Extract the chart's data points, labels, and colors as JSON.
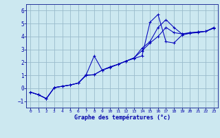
{
  "xlabel": "Graphe des températures (°c)",
  "background_color": "#cce8f0",
  "grid_color": "#99bbcc",
  "line_color": "#0000bb",
  "xlim": [
    -0.5,
    23.5
  ],
  "ylim": [
    -1.5,
    6.5
  ],
  "yticks": [
    -1,
    0,
    1,
    2,
    3,
    4,
    5,
    6
  ],
  "xticks": [
    0,
    1,
    2,
    3,
    4,
    5,
    6,
    7,
    8,
    9,
    10,
    11,
    12,
    13,
    14,
    15,
    16,
    17,
    18,
    19,
    20,
    21,
    22,
    23
  ],
  "line1_x": [
    0,
    1,
    2,
    3,
    4,
    5,
    6,
    7,
    8,
    9,
    10,
    11,
    12,
    13,
    14,
    15,
    16,
    17,
    18,
    19,
    20,
    21,
    22,
    23
  ],
  "line1_y": [
    -0.3,
    -0.5,
    -0.8,
    0.05,
    0.15,
    0.25,
    0.4,
    1.05,
    2.5,
    1.4,
    1.6,
    1.85,
    2.1,
    2.3,
    2.5,
    5.1,
    5.7,
    3.6,
    3.5,
    4.1,
    4.25,
    4.3,
    4.4,
    4.7
  ],
  "line2_x": [
    0,
    1,
    2,
    3,
    4,
    5,
    6,
    7,
    8,
    9,
    10,
    11,
    12,
    13,
    14,
    15,
    16,
    17,
    18,
    19,
    20,
    21,
    22,
    23
  ],
  "line2_y": [
    -0.3,
    -0.5,
    -0.8,
    0.05,
    0.15,
    0.25,
    0.4,
    1.0,
    1.05,
    1.4,
    1.65,
    1.85,
    2.1,
    2.35,
    3.1,
    3.6,
    4.7,
    5.3,
    4.7,
    4.2,
    4.3,
    4.35,
    4.4,
    4.65
  ],
  "line3_x": [
    0,
    1,
    2,
    3,
    4,
    5,
    6,
    7,
    8,
    9,
    10,
    11,
    12,
    13,
    14,
    15,
    16,
    17,
    18,
    19,
    20,
    21,
    22,
    23
  ],
  "line3_y": [
    -0.3,
    -0.5,
    -0.8,
    0.05,
    0.15,
    0.25,
    0.4,
    1.0,
    1.05,
    1.4,
    1.65,
    1.85,
    2.1,
    2.35,
    2.9,
    3.5,
    4.0,
    4.7,
    4.3,
    4.2,
    4.25,
    4.35,
    4.4,
    4.65
  ]
}
